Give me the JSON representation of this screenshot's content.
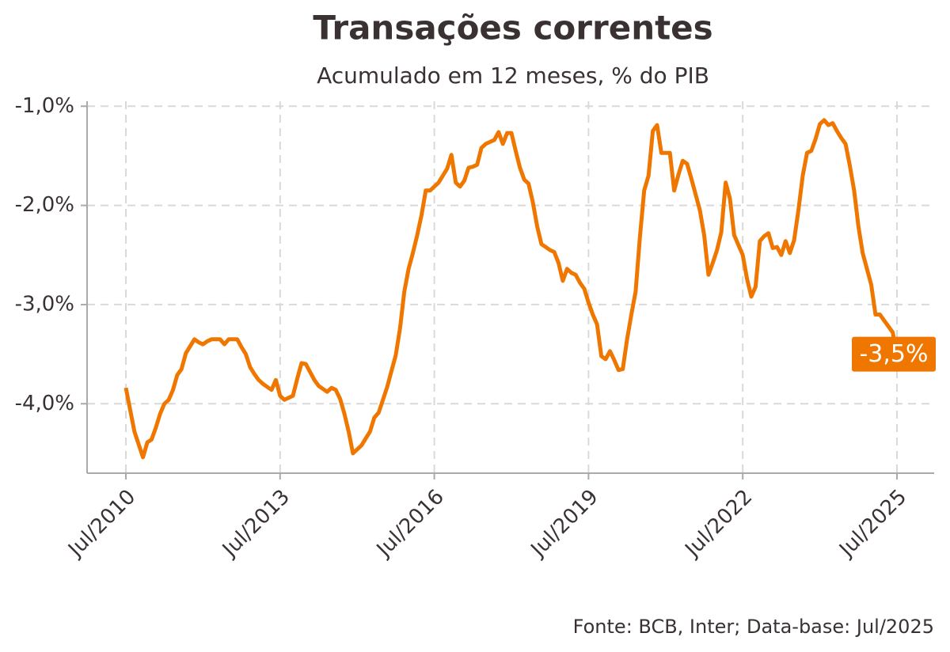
{
  "chart_data": {
    "type": "line",
    "title": "Transações correntes",
    "subtitle": "Acumulado em 12 meses, % do PIB",
    "source": "Fonte: BCB, Inter; Data-base: Jul/2025",
    "categories": [
      "Jul/2010",
      null,
      null,
      null,
      null,
      null,
      null,
      null,
      null,
      null,
      null,
      null,
      null,
      null,
      null,
      null,
      null,
      null,
      null,
      null,
      null,
      null,
      null,
      null,
      null,
      null,
      null,
      null,
      null,
      null,
      null,
      null,
      null,
      null,
      null,
      null,
      "Jul/2013",
      null,
      null,
      null,
      null,
      null,
      null,
      null,
      null,
      null,
      null,
      null,
      null,
      null,
      null,
      null,
      null,
      null,
      null,
      null,
      null,
      null,
      null,
      null,
      null,
      null,
      null,
      null,
      null,
      null,
      null,
      null,
      null,
      null,
      null,
      null,
      "Jul/2016",
      null,
      null,
      null,
      null,
      null,
      null,
      null,
      null,
      null,
      null,
      null,
      null,
      null,
      null,
      null,
      null,
      null,
      null,
      null,
      null,
      null,
      null,
      null,
      null,
      null,
      null,
      null,
      null,
      null,
      null,
      null,
      null,
      null,
      null,
      null,
      "Jul/2019",
      null,
      null,
      null,
      null,
      null,
      null,
      null,
      null,
      null,
      null,
      null,
      null,
      null,
      null,
      null,
      null,
      null,
      null,
      null,
      null,
      null,
      null,
      null,
      null,
      null,
      null,
      null,
      null,
      null,
      null,
      null,
      null,
      null,
      null,
      null,
      "Jul/2022",
      null,
      null,
      null,
      null,
      null,
      null,
      null,
      null,
      null,
      null,
      null,
      null,
      null,
      null,
      null,
      null,
      null,
      null,
      null,
      null,
      null,
      null,
      null,
      null,
      null,
      null,
      null,
      null,
      null,
      null,
      null,
      null,
      null,
      null,
      null,
      "Jul/2025"
    ],
    "series": [
      {
        "name": "Transações correntes",
        "color": "#ef7700",
        "values": [
          -3.84,
          -4.06,
          -4.28,
          -4.41,
          -4.54,
          -4.39,
          -4.36,
          -4.24,
          -4.1,
          -4.0,
          -3.96,
          -3.86,
          -3.71,
          -3.65,
          -3.49,
          -3.42,
          -3.35,
          -3.38,
          -3.4,
          -3.37,
          -3.35,
          -3.35,
          -3.35,
          -3.4,
          -3.35,
          -3.35,
          -3.35,
          -3.43,
          -3.5,
          -3.63,
          -3.7,
          -3.76,
          -3.8,
          -3.83,
          -3.86,
          -3.76,
          -3.92,
          -3.96,
          -3.94,
          -3.92,
          -3.75,
          -3.59,
          -3.6,
          -3.68,
          -3.76,
          -3.82,
          -3.85,
          -3.88,
          -3.84,
          -3.86,
          -3.95,
          -4.1,
          -4.28,
          -4.5,
          -4.46,
          -4.42,
          -4.35,
          -4.28,
          -4.14,
          -4.09,
          -3.96,
          -3.83,
          -3.67,
          -3.51,
          -3.24,
          -2.87,
          -2.64,
          -2.48,
          -2.3,
          -2.1,
          -1.85,
          -1.85,
          -1.81,
          -1.77,
          -1.7,
          -1.63,
          -1.49,
          -1.77,
          -1.81,
          -1.75,
          -1.62,
          -1.61,
          -1.59,
          -1.42,
          -1.38,
          -1.36,
          -1.34,
          -1.26,
          -1.38,
          -1.27,
          -1.27,
          -1.45,
          -1.62,
          -1.74,
          -1.78,
          -1.97,
          -2.21,
          -2.39,
          -2.42,
          -2.45,
          -2.47,
          -2.58,
          -2.76,
          -2.64,
          -2.68,
          -2.7,
          -2.78,
          -2.84,
          -2.98,
          -3.1,
          -3.2,
          -3.52,
          -3.55,
          -3.47,
          -3.56,
          -3.66,
          -3.65,
          -3.35,
          -3.1,
          -2.87,
          -2.32,
          -1.85,
          -1.7,
          -1.25,
          -1.19,
          -1.47,
          -1.47,
          -1.47,
          -1.85,
          -1.69,
          -1.55,
          -1.58,
          -1.73,
          -1.89,
          -2.05,
          -2.3,
          -2.7,
          -2.58,
          -2.45,
          -2.27,
          -1.77,
          -1.93,
          -2.3,
          -2.4,
          -2.5,
          -2.74,
          -2.92,
          -2.82,
          -2.36,
          -2.31,
          -2.28,
          -2.43,
          -2.42,
          -2.5,
          -2.36,
          -2.48,
          -2.35,
          -2.05,
          -1.7,
          -1.47,
          -1.45,
          -1.33,
          -1.18,
          -1.14,
          -1.19,
          -1.17,
          -1.25,
          -1.32,
          -1.38,
          -1.6,
          -1.85,
          -2.21,
          -2.48,
          -2.64,
          -2.8,
          -3.1,
          -3.1,
          -3.16,
          -3.22,
          -3.28,
          -3.5
        ],
        "value_labels": [
          null,
          null,
          null,
          null,
          null,
          null,
          null,
          null,
          null,
          null,
          null,
          null,
          null,
          null,
          null,
          null,
          null,
          null,
          null,
          null,
          null,
          null,
          null,
          null,
          null,
          null,
          null,
          null,
          null,
          null,
          null,
          null,
          null,
          null,
          null,
          null,
          null,
          null,
          null,
          null,
          null,
          null,
          null,
          null,
          null,
          null,
          null,
          null,
          null,
          null,
          null,
          null,
          null,
          null,
          null,
          null,
          null,
          null,
          null,
          null,
          null,
          null,
          null,
          null,
          null,
          null,
          null,
          null,
          null,
          null,
          null,
          null,
          null,
          null,
          null,
          null,
          null,
          null,
          null,
          null,
          null,
          null,
          null,
          null,
          null,
          null,
          null,
          null,
          null,
          null,
          null,
          null,
          null,
          null,
          null,
          null,
          null,
          null,
          null,
          null,
          null,
          null,
          null,
          null,
          null,
          null,
          null,
          null,
          null,
          null,
          null,
          null,
          null,
          null,
          null,
          null,
          null,
          null,
          null,
          null,
          null,
          null,
          null,
          null,
          null,
          null,
          null,
          null,
          null,
          null,
          null,
          null,
          null,
          null,
          null,
          null,
          null,
          null,
          null,
          null,
          null,
          null,
          null,
          null,
          null,
          null,
          null,
          null,
          null,
          null,
          null,
          null,
          null,
          null,
          null,
          null,
          null,
          null,
          null,
          null,
          null,
          null,
          null,
          null,
          null,
          null,
          null,
          null,
          null,
          null,
          null,
          null,
          null,
          null,
          null,
          null,
          null,
          null,
          null,
          null,
          "-3,5%"
        ]
      }
    ],
    "ylim": [
      -4.7,
      -0.95
    ],
    "yticks": [
      {
        "value": -1,
        "label": "-1,0%"
      },
      {
        "value": -2,
        "label": "-2,0%"
      },
      {
        "value": -3,
        "label": "-3,0%"
      },
      {
        "value": -4,
        "label": "-4,0%"
      }
    ],
    "grid": true
  }
}
